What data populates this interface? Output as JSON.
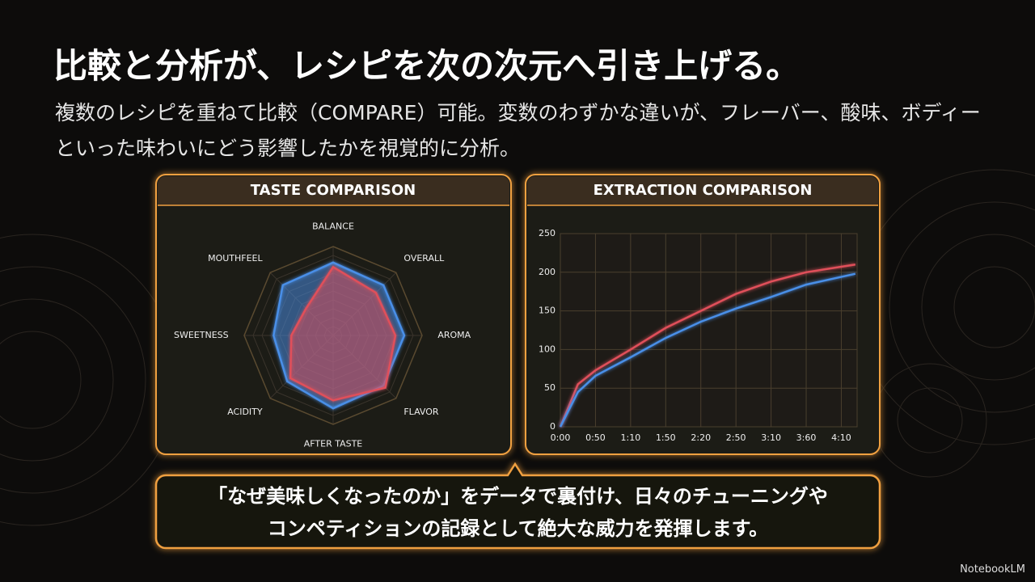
{
  "title": "比較と分析が、レシピを次の次元へ引き上げる。",
  "subtitle": "複数のレシピを重ねて比較（COMPARE）可能。変数のわずかな違いが、フレーバー、酸味、ボディーといった味わいにどう影響したかを視覚的に分析。",
  "callout": [
    "「なぜ美味しくなったのか」をデータで裏付け、日々のチューニングや",
    "コンペティションの記録として絶大な威力を発揮します。"
  ],
  "brand": "NotebookLM",
  "chart_data": [
    {
      "type": "radar",
      "title": "TASTE COMPARISON",
      "categories": [
        "BALANCE",
        "OVERALL",
        "AROMA",
        "FLAVOR",
        "AFTER TASTE",
        "ACIDITY",
        "SWEETNESS",
        "MOUTHFEEL"
      ],
      "rlim": [
        0,
        10
      ],
      "rticks": [
        1,
        2,
        3,
        4,
        5,
        6,
        7,
        8,
        9,
        10
      ],
      "series": [
        {
          "color": "#4a8fe8",
          "values": [
            8.2,
            8,
            8,
            8,
            8.2,
            7.3,
            6.7,
            8
          ]
        },
        {
          "color": "#e0505a",
          "values": [
            7.7,
            6.8,
            7,
            8.3,
            7.3,
            6.8,
            4.7,
            4.3
          ]
        }
      ]
    },
    {
      "type": "line",
      "title": "EXTRACTION COMPARISON",
      "x": [
        0,
        0.5,
        1,
        2,
        3,
        4,
        5,
        6,
        7,
        8.4
      ],
      "xlim": [
        0,
        8.45
      ],
      "xticks": [
        {
          "value": 0,
          "label": "0:00"
        },
        {
          "value": 1,
          "label": "0:50"
        },
        {
          "value": 2,
          "label": "1:10"
        },
        {
          "value": 3,
          "label": "1:50"
        },
        {
          "value": 4,
          "label": "2:20"
        },
        {
          "value": 5,
          "label": "2:50"
        },
        {
          "value": 6,
          "label": "3:10"
        },
        {
          "value": 7,
          "label": "3:60"
        },
        {
          "value": 8,
          "label": "4:10"
        }
      ],
      "ylim": [
        0,
        250
      ],
      "yticks": [
        0,
        50,
        100,
        150,
        200,
        250
      ],
      "grid": true,
      "series": [
        {
          "color": "#e0505a",
          "values": [
            0,
            55,
            73,
            100,
            128,
            150,
            172,
            188,
            200,
            210
          ]
        },
        {
          "color": "#4a8fe8",
          "values": [
            0,
            45,
            66,
            90,
            115,
            136,
            153,
            168,
            184,
            198
          ]
        }
      ]
    }
  ]
}
